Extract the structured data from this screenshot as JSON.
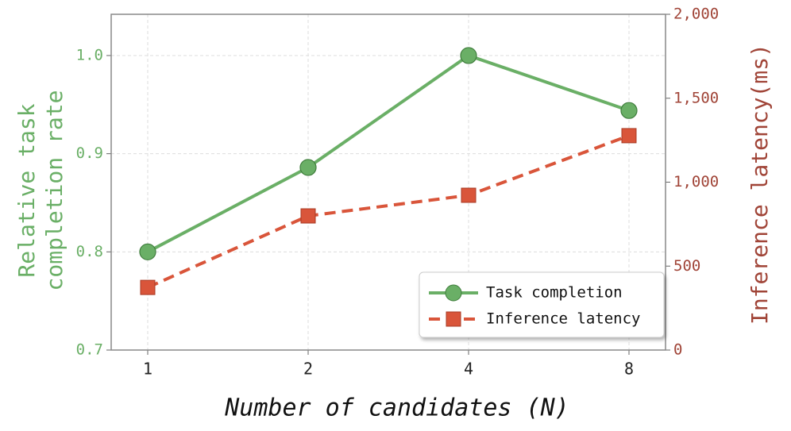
{
  "chart_data": {
    "type": "line",
    "categories": [
      "1",
      "2",
      "4",
      "8"
    ],
    "xlabel": "Number of candidates (N)",
    "ylabel": [
      "Relative task",
      "completion rate"
    ],
    "y2label": "Inference latency(ms)",
    "ylim": [
      0.7,
      1.042
    ],
    "yticks": [
      {
        "value": 0.7,
        "label": "0.7"
      },
      {
        "value": 0.8,
        "label": "0.8"
      },
      {
        "value": 0.9,
        "label": "0.9"
      },
      {
        "value": 1,
        "label": "1.0"
      }
    ],
    "y2lim": [
      0,
      2000
    ],
    "y2ticks": [
      0,
      500,
      {
        "value": 1000,
        "label": "1,000"
      },
      {
        "value": 1500,
        "label": "1,500"
      },
      {
        "value": 2000,
        "label": "2,000"
      }
    ],
    "grid": true,
    "legend": "lower right",
    "series": [
      {
        "name": "Task completion",
        "color": "#6aaf66",
        "marker": "circle",
        "values": [
          0.8,
          0.886,
          1.0,
          0.944
        ]
      },
      {
        "name": "Inference latency",
        "color": "#d9553a",
        "marker": "square",
        "linestyle": "dashed",
        "axis": "y2",
        "values": [
          373,
          799,
          922,
          1277
        ]
      }
    ]
  }
}
